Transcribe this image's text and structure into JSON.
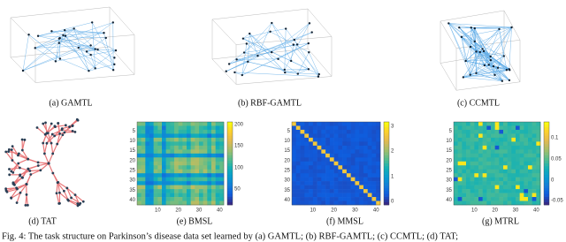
{
  "panels": [
    {
      "caption": "(a) GAMTL"
    },
    {
      "caption": "(b) RBF-GAMTL"
    },
    {
      "caption": "(c) CCMTL"
    },
    {
      "caption": "(d) TAT"
    },
    {
      "caption": "(e) BMSL",
      "yticks": [
        5,
        10,
        15,
        20,
        25,
        30,
        35,
        40
      ],
      "xticks": [
        10,
        20,
        30,
        40
      ],
      "colorbar_ticks": [
        200,
        150,
        100,
        50
      ]
    },
    {
      "caption": "(f) MMSL",
      "yticks": [
        5,
        10,
        15,
        20,
        25,
        30,
        35,
        40
      ],
      "xticks": [
        10,
        20,
        30,
        40
      ],
      "colorbar_ticks": [
        3,
        2,
        1,
        0
      ]
    },
    {
      "caption": "(g) MTRL",
      "yticks": [
        5,
        10,
        15,
        20,
        25,
        30,
        35,
        40
      ],
      "xticks": [
        10,
        20,
        30,
        40
      ],
      "colorbar_ticks": [
        0.1,
        0.05,
        0,
        -0.05
      ]
    }
  ],
  "figure_caption": "Fig. 4: The task structure on Parkinson’s disease data set learned by (a) GAMTL; (b) RBF-GAMTL; (c) CCMTL; (d) TAT;"
}
